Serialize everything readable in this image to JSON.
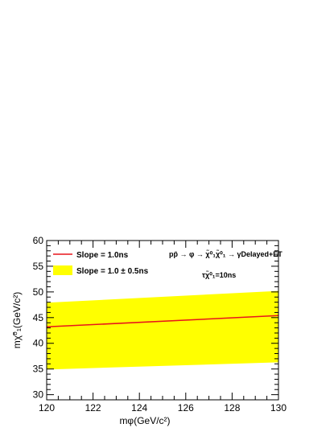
{
  "chart_data": {
    "type": "line",
    "xlabel": "mφ(GeV/c²)",
    "ylabel": "mχ̃⁰₁(GeV/c²)",
    "xlim": [
      120,
      130
    ],
    "ylim": [
      29,
      60
    ],
    "x_ticks": [
      120,
      122,
      124,
      126,
      128,
      130
    ],
    "y_ticks": [
      30,
      35,
      40,
      45,
      50,
      55,
      60
    ],
    "grid": false,
    "legend_position": "top-left",
    "series": [
      {
        "name": "Slope = 1.0ns",
        "kind": "line",
        "color": "#e8151b",
        "x": [
          120,
          130
        ],
        "y": [
          43.2,
          45.4
        ]
      },
      {
        "name": "Slope = 1.0 ± 0.5ns",
        "kind": "band",
        "color": "#ffff00",
        "x": [
          120,
          130
        ],
        "y_low": [
          34.9,
          36.3
        ],
        "y_high": [
          47.9,
          50.2
        ]
      }
    ],
    "annotations": {
      "process": "pp̄ → φ → χ̃⁰₁χ̃⁰₁ → γDelayed+E̸T",
      "lifetime": "τχ̃⁰₁=10ns"
    }
  }
}
